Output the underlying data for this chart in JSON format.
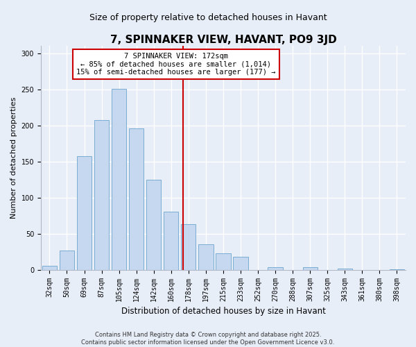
{
  "title": "7, SPINNAKER VIEW, HAVANT, PO9 3JD",
  "subtitle": "Size of property relative to detached houses in Havant",
  "xlabel": "Distribution of detached houses by size in Havant",
  "ylabel": "Number of detached properties",
  "bar_labels": [
    "32sqm",
    "50sqm",
    "69sqm",
    "87sqm",
    "105sqm",
    "124sqm",
    "142sqm",
    "160sqm",
    "178sqm",
    "197sqm",
    "215sqm",
    "233sqm",
    "252sqm",
    "270sqm",
    "288sqm",
    "307sqm",
    "325sqm",
    "343sqm",
    "361sqm",
    "380sqm",
    "398sqm"
  ],
  "bar_values": [
    5,
    27,
    157,
    207,
    251,
    196,
    125,
    80,
    63,
    35,
    23,
    18,
    0,
    4,
    0,
    4,
    0,
    2,
    0,
    0,
    1
  ],
  "bar_color": "#c5d8ef",
  "bar_edge_color": "#7aadd4",
  "vline_color": "#cc0000",
  "vline_pos": 7.67,
  "ylim": [
    0,
    310
  ],
  "yticks": [
    0,
    50,
    100,
    150,
    200,
    250,
    300
  ],
  "annotation_title": "7 SPINNAKER VIEW: 172sqm",
  "annotation_line1": "← 85% of detached houses are smaller (1,014)",
  "annotation_line2": "15% of semi-detached houses are larger (177) →",
  "annotation_box_color": "#ffffff",
  "annotation_box_edge": "#cc0000",
  "footer_line1": "Contains HM Land Registry data © Crown copyright and database right 2025.",
  "footer_line2": "Contains public sector information licensed under the Open Government Licence v3.0.",
  "bg_color": "#e8eef8",
  "grid_color": "#ffffff",
  "title_fontsize": 11,
  "subtitle_fontsize": 9,
  "ylabel_fontsize": 8,
  "xlabel_fontsize": 8.5,
  "tick_fontsize": 7,
  "annot_fontsize": 7.5,
  "footer_fontsize": 6
}
